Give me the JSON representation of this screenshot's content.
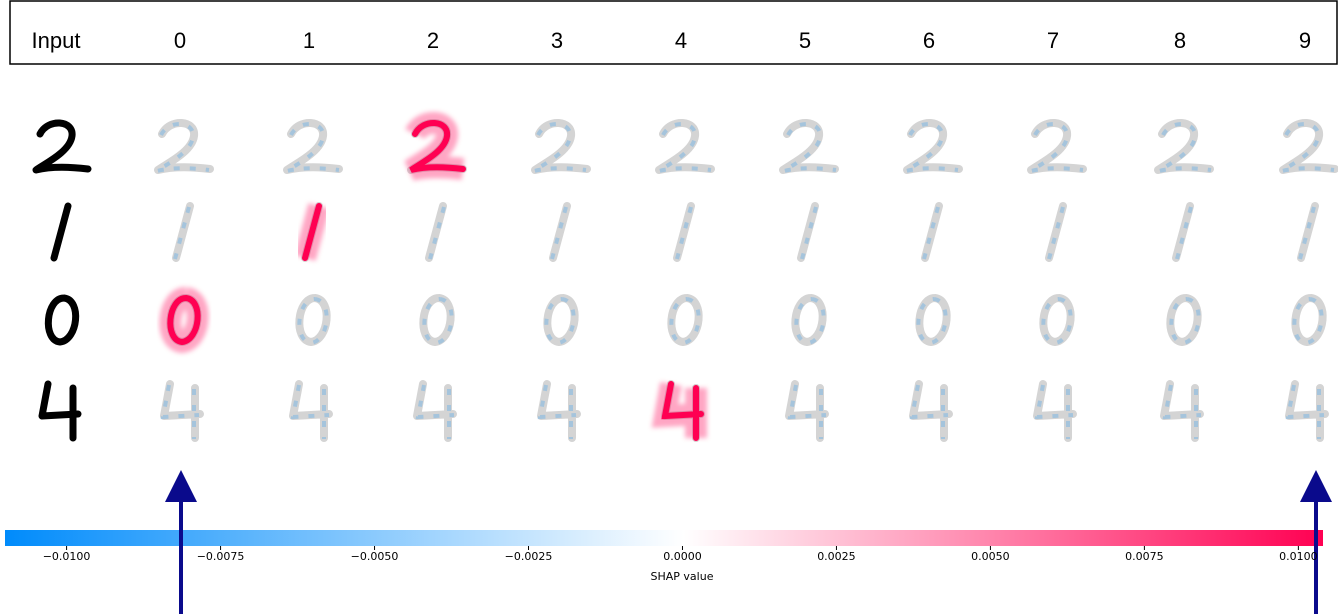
{
  "header": {
    "labels": [
      "Input",
      "0",
      "1",
      "2",
      "3",
      "4",
      "5",
      "6",
      "7",
      "8",
      "9"
    ]
  },
  "colorbar": {
    "label": "SHAP value",
    "xlim": [
      -0.011,
      0.0104
    ],
    "xticks": [
      {
        "value": -0.01,
        "label": "−0.0100"
      },
      {
        "value": -0.0075,
        "label": "−0.0075"
      },
      {
        "value": -0.005,
        "label": "−0.0050"
      },
      {
        "value": -0.0025,
        "label": "−0.0025"
      },
      {
        "value": 0,
        "label": "0.0000"
      },
      {
        "value": 0.0025,
        "label": "0.0025"
      },
      {
        "value": 0.005,
        "label": "0.0050"
      },
      {
        "value": 0.0075,
        "label": "0.0075"
      },
      {
        "value": 0.01,
        "label": "0.0100"
      }
    ],
    "low_color": "#008bfb",
    "high_color": "#ff0052"
  }
}
